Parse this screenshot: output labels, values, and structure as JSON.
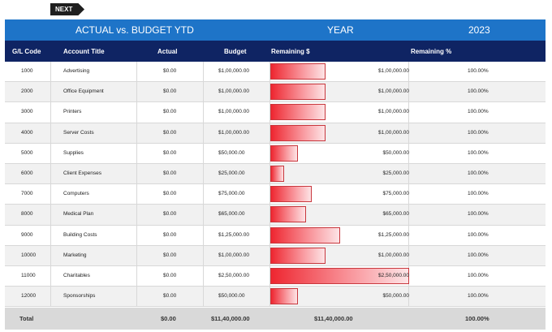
{
  "nav": {
    "next_label": "NEXT"
  },
  "title": {
    "main": "ACTUAL vs. BUDGET YTD",
    "year_label": "YEAR",
    "year_value": "2023"
  },
  "columns": [
    "G/L Code",
    "Account Title",
    "Actual",
    "Budget",
    "Remaining $",
    "Remaining %"
  ],
  "rows": [
    {
      "code": "1000",
      "title": "Advertising",
      "actual": "$0.00",
      "budget": "$1,00,000.00",
      "remaining": "$1,00,000.00",
      "pct": "100.00%",
      "bar": 100000
    },
    {
      "code": "2000",
      "title": "Office Equipment",
      "actual": "$0.00",
      "budget": "$1,00,000.00",
      "remaining": "$1,00,000.00",
      "pct": "100.00%",
      "bar": 100000
    },
    {
      "code": "3000",
      "title": "Printers",
      "actual": "$0.00",
      "budget": "$1,00,000.00",
      "remaining": "$1,00,000.00",
      "pct": "100.00%",
      "bar": 100000
    },
    {
      "code": "4000",
      "title": "Server Costs",
      "actual": "$0.00",
      "budget": "$1,00,000.00",
      "remaining": "$1,00,000.00",
      "pct": "100.00%",
      "bar": 100000
    },
    {
      "code": "5000",
      "title": "Supplies",
      "actual": "$0.00",
      "budget": "$50,000.00",
      "remaining": "$50,000.00",
      "pct": "100.00%",
      "bar": 50000
    },
    {
      "code": "6000",
      "title": "Client Expenses",
      "actual": "$0.00",
      "budget": "$25,000.00",
      "remaining": "$25,000.00",
      "pct": "100.00%",
      "bar": 25000
    },
    {
      "code": "7000",
      "title": "Computers",
      "actual": "$0.00",
      "budget": "$75,000.00",
      "remaining": "$75,000.00",
      "pct": "100.00%",
      "bar": 75000
    },
    {
      "code": "8000",
      "title": "Medical Plan",
      "actual": "$0.00",
      "budget": "$65,000.00",
      "remaining": "$65,000.00",
      "pct": "100.00%",
      "bar": 65000
    },
    {
      "code": "9000",
      "title": "Building Costs",
      "actual": "$0.00",
      "budget": "$1,25,000.00",
      "remaining": "$1,25,000.00",
      "pct": "100.00%",
      "bar": 125000
    },
    {
      "code": "10000",
      "title": "Marketing",
      "actual": "$0.00",
      "budget": "$1,00,000.00",
      "remaining": "$1,00,000.00",
      "pct": "100.00%",
      "bar": 100000
    },
    {
      "code": "11000",
      "title": "Charitables",
      "actual": "$0.00",
      "budget": "$2,50,000.00",
      "remaining": "$2,50,000.00",
      "pct": "100.00%",
      "bar": 250000
    },
    {
      "code": "12000",
      "title": "Sponsorships",
      "actual": "$0.00",
      "budget": "$50,000.00",
      "remaining": "$50,000.00",
      "pct": "100.00%",
      "bar": 50000
    }
  ],
  "total": {
    "label": "Total",
    "actual": "$0.00",
    "budget": "$11,40,000.00",
    "remaining": "$11,40,000.00",
    "pct": "100.00%"
  },
  "colors": {
    "title_bar": "#1e74c8",
    "header": "#0f2463",
    "bar": "#ee2630",
    "total_bg": "#d9d9d9"
  }
}
